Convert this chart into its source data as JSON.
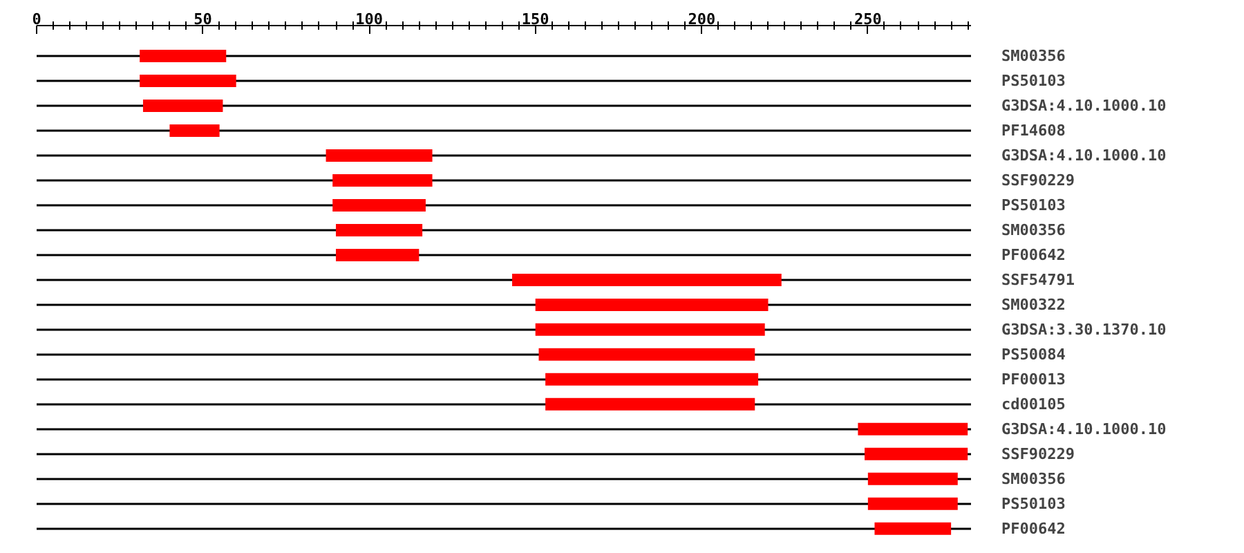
{
  "chart_data": {
    "type": "bar",
    "orientation": "horizontal",
    "color": "#ff0000",
    "grid": "y",
    "categories": [
      "SM00356",
      "PS50103",
      "G3DSA:4.10.1000.10",
      "PF14608",
      "G3DSA:4.10.1000.10",
      "SSF90229",
      "PS50103",
      "SM00356",
      "PF00642",
      "SSF54791",
      "SM00322",
      "G3DSA:3.30.1370.10",
      "PS50084",
      "PF00013",
      "cd00105",
      "G3DSA:4.10.1000.10",
      "SSF90229",
      "SM00356",
      "PS50103",
      "PF00642"
    ],
    "base": [
      31,
      31,
      32,
      40,
      87,
      89,
      89,
      90,
      90,
      143,
      150,
      150,
      151,
      153,
      153,
      247,
      249,
      250,
      250,
      252
    ],
    "values": [
      26,
      29,
      24,
      15,
      32,
      30,
      28,
      26,
      25,
      81,
      70,
      69,
      65,
      64,
      63,
      33,
      31,
      27,
      27,
      23
    ],
    "xlim": [
      0,
      281
    ],
    "xticks": [
      0,
      {
        "value": 5,
        "label": null
      },
      {
        "value": 10,
        "label": null
      },
      {
        "value": 15,
        "label": null
      },
      {
        "value": 20,
        "label": null
      },
      {
        "value": 25,
        "label": null
      },
      {
        "value": 30,
        "label": null
      },
      {
        "value": 35,
        "label": null
      },
      {
        "value": 40,
        "label": null
      },
      {
        "value": 45,
        "label": null
      },
      50,
      {
        "value": 55,
        "label": null
      },
      {
        "value": 60,
        "label": null
      },
      {
        "value": 65,
        "label": null
      },
      {
        "value": 70,
        "label": null
      },
      {
        "value": 75,
        "label": null
      },
      {
        "value": 80,
        "label": null
      },
      {
        "value": 85,
        "label": null
      },
      {
        "value": 90,
        "label": null
      },
      {
        "value": 95,
        "label": null
      },
      100,
      {
        "value": 105,
        "label": null
      },
      {
        "value": 110,
        "label": null
      },
      {
        "value": 115,
        "label": null
      },
      {
        "value": 120,
        "label": null
      },
      {
        "value": 125,
        "label": null
      },
      {
        "value": 130,
        "label": null
      },
      {
        "value": 135,
        "label": null
      },
      {
        "value": 140,
        "label": null
      },
      {
        "value": 145,
        "label": null
      },
      150,
      {
        "value": 155,
        "label": null
      },
      {
        "value": 160,
        "label": null
      },
      {
        "value": 165,
        "label": null
      },
      {
        "value": 170,
        "label": null
      },
      {
        "value": 175,
        "label": null
      },
      {
        "value": 180,
        "label": null
      },
      {
        "value": 185,
        "label": null
      },
      {
        "value": 190,
        "label": null
      },
      {
        "value": 195,
        "label": null
      },
      200,
      {
        "value": 205,
        "label": null
      },
      {
        "value": 210,
        "label": null
      },
      {
        "value": 215,
        "label": null
      },
      {
        "value": 220,
        "label": null
      },
      {
        "value": 225,
        "label": null
      },
      {
        "value": 230,
        "label": null
      },
      {
        "value": 235,
        "label": null
      },
      {
        "value": 240,
        "label": null
      },
      {
        "value": 245,
        "label": null
      },
      250,
      {
        "value": 255,
        "label": null
      },
      {
        "value": 260,
        "label": null
      },
      {
        "value": 265,
        "label": null
      },
      {
        "value": 270,
        "label": null
      },
      {
        "value": 275,
        "label": null
      },
      {
        "value": 280,
        "label": null
      }
    ]
  }
}
